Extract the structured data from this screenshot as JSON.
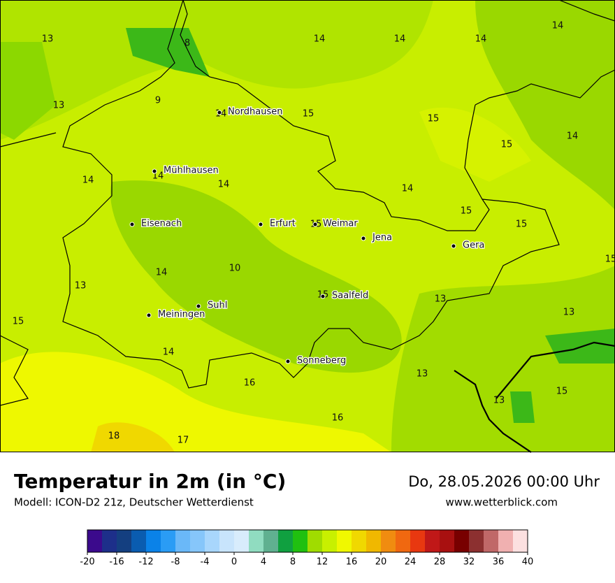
{
  "map": {
    "values": [
      13,
      8,
      14,
      14,
      14,
      14,
      13,
      9,
      14,
      15,
      15,
      15,
      14,
      14,
      14,
      14,
      14,
      15,
      15,
      15,
      15,
      10,
      14,
      13,
      15,
      13,
      13,
      15,
      14,
      16,
      13,
      13,
      15,
      16,
      18,
      17
    ],
    "cities": [
      "Nordhausen",
      "Mühlhausen",
      "Eisenach",
      "Erfurt",
      "Weimar",
      "Jena",
      "Gera",
      "Suhl",
      "Meiningen",
      "Saalfeld",
      "Sonneberg"
    ]
  },
  "header": {
    "title": "Temperatur in 2m (in °C)",
    "subtitle": "Modell: ICON-D2 21z, Deutscher Wetterdienst",
    "date": "Do, 28.05.2026 00:00 Uhr",
    "site": "www.wetterblick.com"
  },
  "legend": {
    "ticks": [
      -20,
      -16,
      -12,
      -8,
      -4,
      0,
      4,
      8,
      12,
      16,
      20,
      24,
      28,
      32,
      36,
      40
    ],
    "colors": [
      "#3b0a8c",
      "#1d2f8a",
      "#143f80",
      "#0a5cb0",
      "#0a82e8",
      "#2a9cf5",
      "#6ab8f8",
      "#86c6fa",
      "#a8d6fc",
      "#c8e4fc",
      "#d8ecfc",
      "#90dcc0",
      "#60b090",
      "#10a040",
      "#20c010",
      "#a0dc00",
      "#c8f000",
      "#f0f800",
      "#f0d800",
      "#f0b800",
      "#f08c10",
      "#f06810",
      "#e83810",
      "#c01818",
      "#a81010",
      "#780000",
      "#8c3030",
      "#c06868",
      "#f0b0b0",
      "#fce0e0"
    ]
  }
}
